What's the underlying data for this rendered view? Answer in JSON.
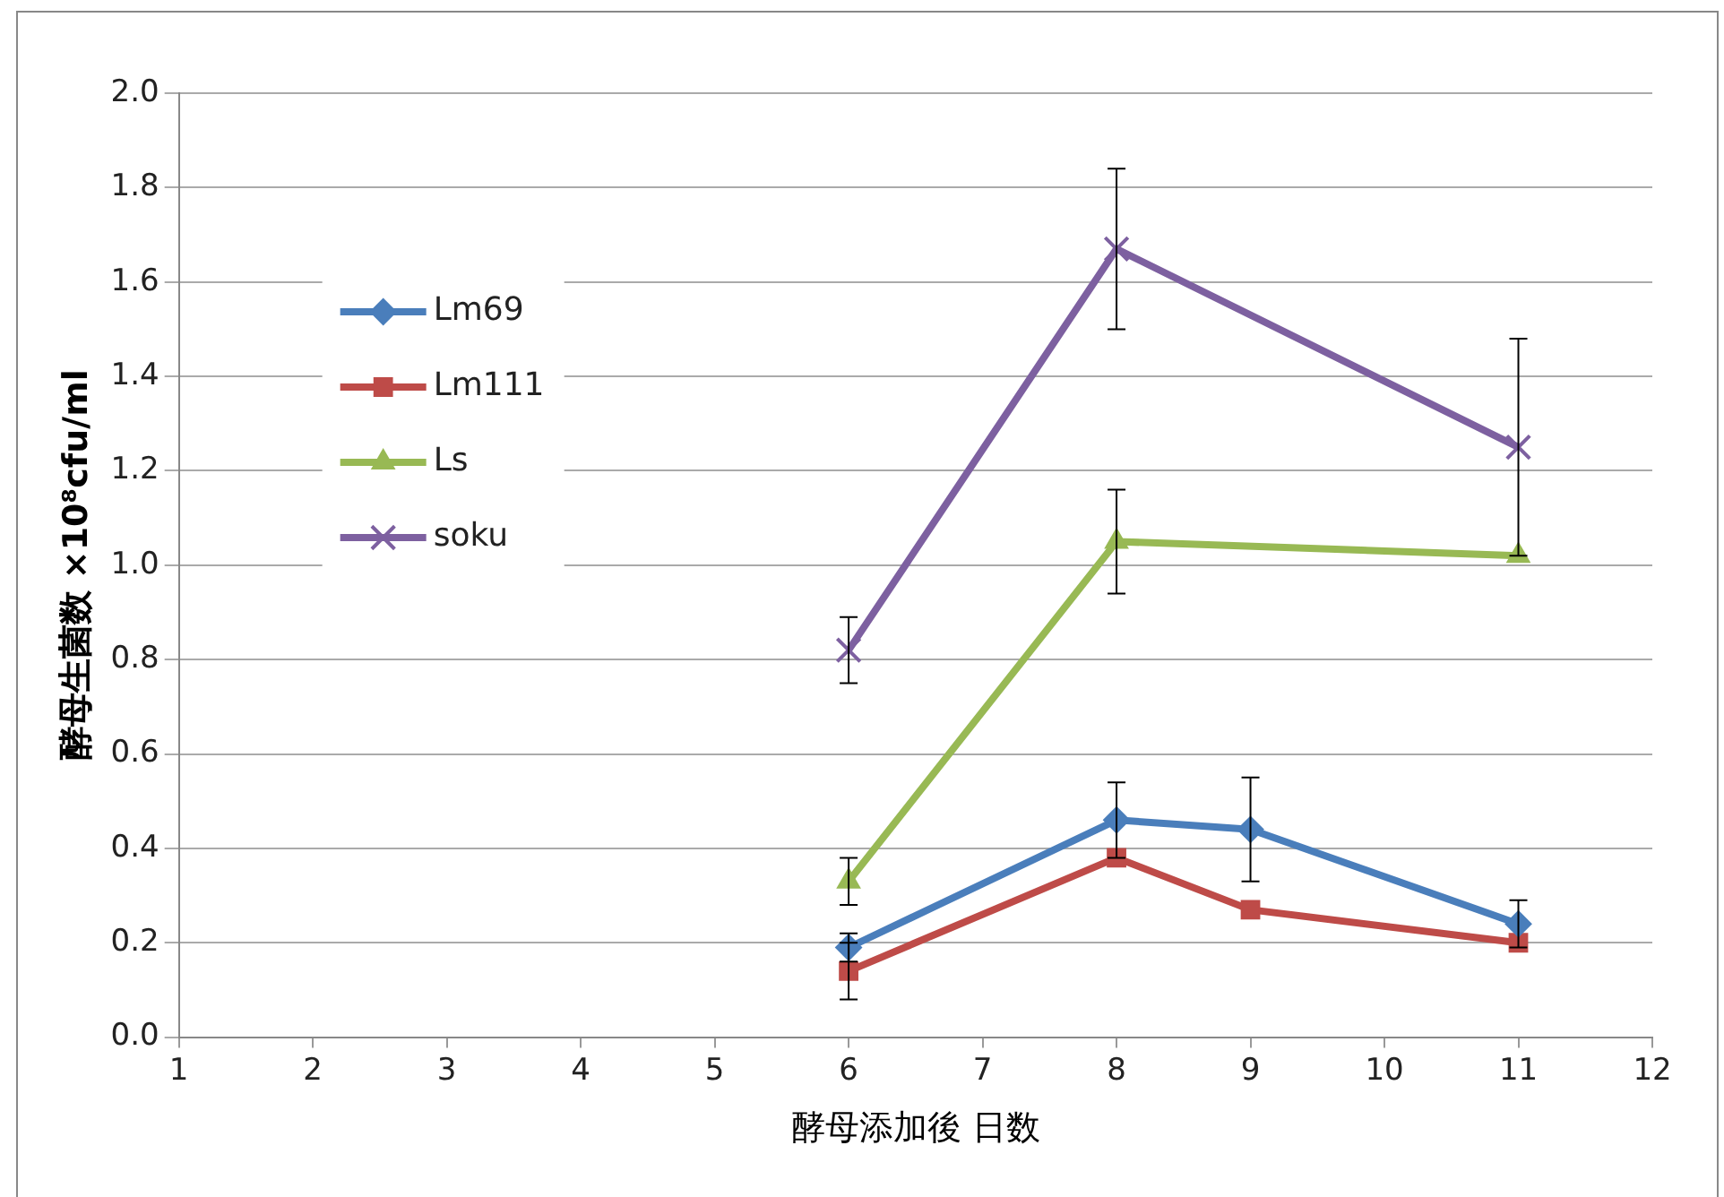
{
  "chart_data": {
    "type": "line",
    "xlabel": "酵母添加後 日数",
    "ylabel": "酵母生菌数 ×10⁸cfu/ml",
    "x": [
      6,
      8,
      9,
      11
    ],
    "series": [
      {
        "name": "Lm69",
        "color": "#4a7ebb",
        "marker": "diamond",
        "values": [
          0.19,
          0.46,
          0.44,
          0.24
        ],
        "errors": [
          0.03,
          0.08,
          0.11,
          0.05
        ]
      },
      {
        "name": "Lm111",
        "color": "#be4b48",
        "marker": "square",
        "values": [
          0.14,
          0.38,
          0.27,
          0.2
        ],
        "errors": [
          0.06,
          null,
          null,
          null
        ]
      },
      {
        "name": "Ls",
        "color": "#98b954",
        "marker": "triangle",
        "x": [
          6,
          8,
          11
        ],
        "values": [
          0.33,
          1.05,
          1.02
        ],
        "errors": [
          0.05,
          0.11,
          null
        ]
      },
      {
        "name": "soku",
        "color": "#7d60a0",
        "marker": "cross",
        "x": [
          6,
          8,
          11
        ],
        "values": [
          0.82,
          1.67,
          1.25
        ],
        "errors": [
          0.07,
          0.17,
          0.23
        ]
      }
    ],
    "xlim": [
      1,
      12
    ],
    "xticks": [
      1,
      2,
      3,
      4,
      5,
      6,
      7,
      8,
      9,
      10,
      11,
      12
    ],
    "ylim": [
      0,
      2
    ],
    "yticks": [
      {
        "value": 0,
        "label": "0.0"
      },
      {
        "value": 0.2,
        "label": "0.2"
      },
      {
        "value": 0.4,
        "label": "0.4"
      },
      {
        "value": 0.6,
        "label": "0.6"
      },
      {
        "value": 0.8,
        "label": "0.8"
      },
      {
        "value": 1,
        "label": "1.0"
      },
      {
        "value": 1.2,
        "label": "1.2"
      },
      {
        "value": 1.4,
        "label": "1.4"
      },
      {
        "value": 1.6,
        "label": "1.6"
      },
      {
        "value": 1.8,
        "label": "1.8"
      },
      {
        "value": 2,
        "label": "2.0"
      }
    ],
    "grid": "y",
    "legend": "left",
    "line_style": "solid"
  }
}
